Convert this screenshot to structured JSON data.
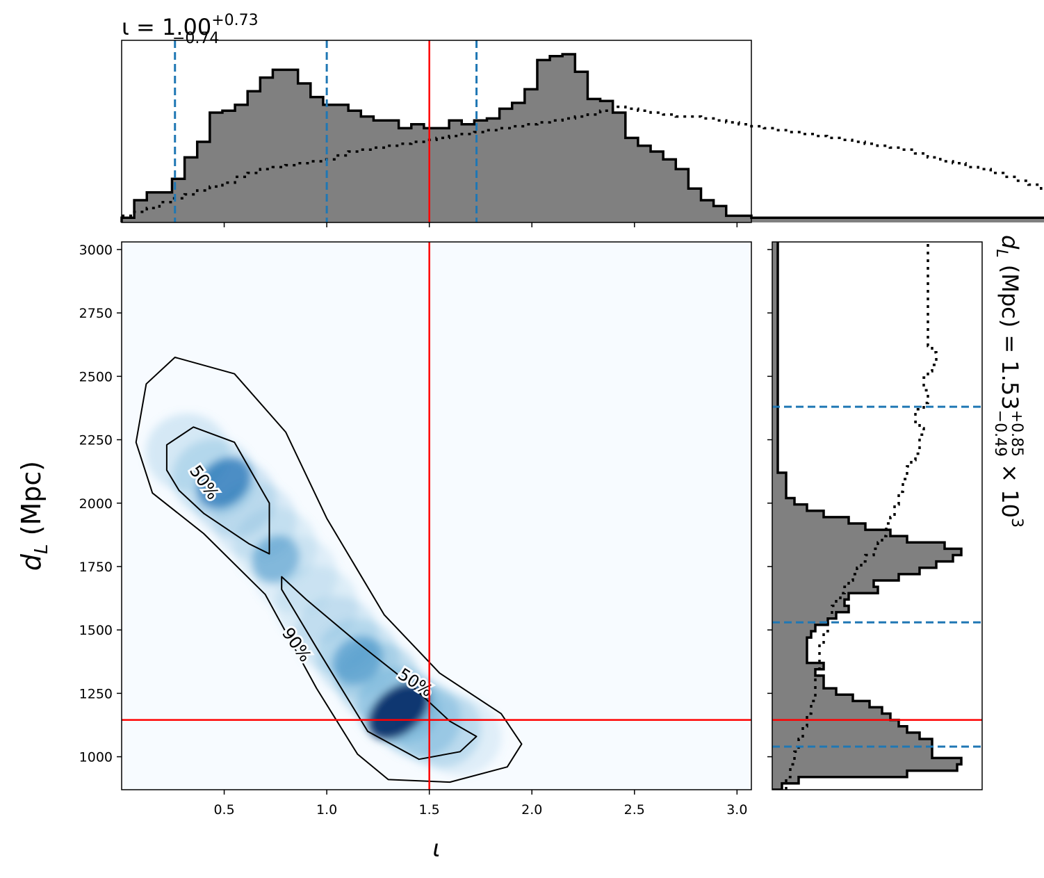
{
  "chart_data": [
    {
      "type": "histogram",
      "title_main": "ι = 1.00",
      "title_sup": "+0.73",
      "title_sub": "−0.74",
      "xlim": [
        0.0,
        3.07
      ],
      "xticks": [
        "0.5",
        "1.0",
        "1.5",
        "2.0",
        "2.5",
        "3.0"
      ],
      "xtick_values": [
        0.5,
        1.0,
        1.5,
        2.0,
        2.5,
        3.0
      ],
      "bin_edges_start": 0.0,
      "bin_width": 0.0614,
      "posterior_counts": [
        1,
        10,
        14,
        14,
        21,
        32,
        40,
        55,
        56,
        59,
        66,
        73,
        77,
        77,
        70,
        63,
        59,
        59,
        56,
        53,
        51,
        51,
        47,
        49,
        47,
        47,
        51,
        49,
        51,
        52,
        57,
        60,
        67,
        82,
        84,
        85,
        76,
        62,
        61,
        55,
        42,
        38,
        35,
        31,
        26,
        16,
        10,
        7,
        2,
        2,
        1,
        1,
        1,
        1,
        1,
        1,
        1,
        1,
        1,
        1,
        1,
        1,
        1,
        1,
        1,
        1,
        1,
        1,
        1,
        1,
        1,
        1,
        1,
        1,
        1,
        1,
        1,
        1
      ],
      "prior_counts": [
        2,
        4,
        6,
        9,
        11,
        13,
        15,
        17,
        19,
        22,
        24,
        26,
        27,
        28,
        29,
        30,
        31,
        33,
        35,
        36,
        37,
        38,
        39,
        40,
        41,
        42,
        43,
        44,
        45,
        46,
        47,
        48,
        49,
        50,
        51,
        52,
        53,
        54,
        56,
        58,
        57,
        56,
        55,
        54,
        53,
        53,
        52,
        51,
        50,
        49,
        48,
        47,
        46,
        45,
        44,
        43,
        42,
        41,
        40,
        39,
        38,
        37,
        36,
        34,
        32,
        30,
        29,
        27,
        26,
        24,
        22,
        20,
        18,
        16,
        14,
        11,
        8,
        5
      ],
      "quantile_lines": [
        0.26,
        1.0,
        1.73
      ],
      "truth_value": 1.5,
      "colors": {
        "fill": "#808080",
        "edge": "#000000",
        "quantile": "#1f77b4",
        "truth": "#ff0000"
      }
    },
    {
      "type": "heatmap",
      "xlabel": "ι",
      "ylabel": "d",
      "ylabel_sub": "L",
      "ylabel_unit": " (Mpc)",
      "xlim": [
        0.0,
        3.07
      ],
      "ylim": [
        870,
        3030
      ],
      "xticks": [
        "0.5",
        "1.0",
        "1.5",
        "2.0",
        "2.5",
        "3.0"
      ],
      "xtick_values": [
        0.5,
        1.0,
        1.5,
        2.0,
        2.5,
        3.0
      ],
      "yticks": [
        "1000",
        "1250",
        "1500",
        "1750",
        "2000",
        "2250",
        "2500",
        "2750",
        "3000"
      ],
      "ytick_values": [
        1000,
        1250,
        1500,
        1750,
        2000,
        2250,
        2500,
        2750,
        3000
      ],
      "density_peaks": [
        {
          "x": 1.35,
          "y": 1180,
          "weight": 1.0
        },
        {
          "x": 1.15,
          "y": 1380,
          "weight": 0.45
        },
        {
          "x": 0.5,
          "y": 2080,
          "weight": 0.6
        },
        {
          "x": 0.75,
          "y": 1780,
          "weight": 0.3
        }
      ],
      "contour_90": [
        [
          0.12,
          2470
        ],
        [
          0.26,
          2575
        ],
        [
          0.55,
          2510
        ],
        [
          0.8,
          2280
        ],
        [
          1.0,
          1940
        ],
        [
          1.28,
          1560
        ],
        [
          1.55,
          1330
        ],
        [
          1.85,
          1170
        ],
        [
          1.95,
          1050
        ],
        [
          1.88,
          960
        ],
        [
          1.6,
          900
        ],
        [
          1.3,
          910
        ],
        [
          1.15,
          1010
        ],
        [
          0.95,
          1270
        ],
        [
          0.7,
          1640
        ],
        [
          0.4,
          1880
        ],
        [
          0.15,
          2040
        ],
        [
          0.07,
          2240
        ]
      ],
      "contour_50_upper": [
        [
          0.22,
          2230
        ],
        [
          0.35,
          2300
        ],
        [
          0.55,
          2240
        ],
        [
          0.72,
          2000
        ],
        [
          0.72,
          1800
        ],
        [
          0.62,
          1840
        ],
        [
          0.4,
          1960
        ],
        [
          0.28,
          2050
        ],
        [
          0.22,
          2130
        ]
      ],
      "contour_50_lower": [
        [
          0.78,
          1710
        ],
        [
          0.9,
          1620
        ],
        [
          1.15,
          1450
        ],
        [
          1.4,
          1290
        ],
        [
          1.6,
          1140
        ],
        [
          1.73,
          1080
        ],
        [
          1.65,
          1020
        ],
        [
          1.45,
          990
        ],
        [
          1.2,
          1100
        ],
        [
          0.95,
          1430
        ],
        [
          0.78,
          1660
        ]
      ],
      "contour_labels": [
        {
          "text": "50%",
          "x": 0.4,
          "y": 2080,
          "angle": 55
        },
        {
          "text": "90%",
          "x": 0.85,
          "y": 1440,
          "angle": 55
        },
        {
          "text": "50%",
          "x": 1.43,
          "y": 1290,
          "angle": 33
        }
      ],
      "truth": {
        "x": 1.5,
        "y": 1145
      }
    },
    {
      "type": "histogram",
      "orientation": "horizontal",
      "side_label_main": "d",
      "side_label_sub": "L",
      "side_label_rest": " (Mpc) = 1.53",
      "side_label_sup": "+0.85",
      "side_label_sub2": "−0.49",
      "side_label_tail": " × 10",
      "side_label_exp": "3",
      "ylim": [
        870,
        3030
      ],
      "bin_edges_start": 870,
      "bin_width": 25,
      "posterior_counts": [
        2,
        6,
        32,
        44,
        45,
        38,
        38,
        38,
        35,
        32,
        30,
        28,
        26,
        23,
        19,
        15,
        12,
        12,
        10,
        12,
        8,
        8,
        8,
        8,
        9,
        10,
        13,
        15,
        18,
        17,
        18,
        25,
        24,
        30,
        35,
        39,
        43,
        45,
        41,
        32,
        28,
        22,
        18,
        12,
        8,
        5,
        3,
        3,
        3,
        3,
        1,
        1,
        1,
        1,
        1,
        1,
        1,
        1,
        1,
        1,
        1,
        1,
        1,
        1,
        1,
        1,
        1,
        1,
        1,
        1,
        1,
        1,
        1,
        1,
        1,
        1,
        1,
        1,
        1,
        1,
        1,
        1,
        1,
        1,
        1,
        1,
        1
      ],
      "prior_counts": [
        3,
        3,
        4,
        4,
        5,
        5,
        6,
        6,
        7,
        7,
        8,
        8,
        9,
        9,
        10,
        10,
        10,
        10,
        11,
        11,
        11,
        11,
        11,
        12,
        12,
        13,
        13,
        14,
        14,
        15,
        16,
        17,
        18,
        19,
        20,
        21,
        22,
        24,
        25,
        26,
        27,
        27,
        28,
        29,
        29,
        30,
        30,
        31,
        31,
        32,
        32,
        33,
        34,
        35,
        35,
        35,
        36,
        35,
        34,
        34,
        36,
        37,
        37,
        36,
        36,
        37,
        38,
        39,
        39,
        38,
        37,
        37,
        37,
        37,
        37,
        37,
        37,
        37,
        37,
        37,
        37,
        37,
        37,
        37,
        37,
        37,
        37,
        37
      ],
      "quantile_lines": [
        1040,
        1530,
        2380
      ],
      "truth_value": 1145
    }
  ]
}
